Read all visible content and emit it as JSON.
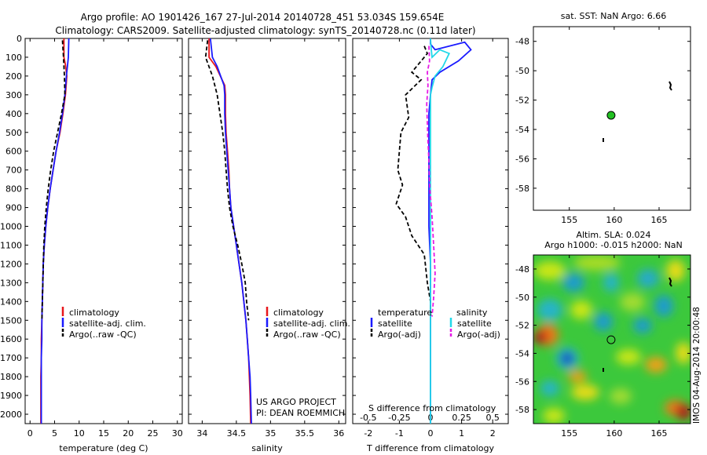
{
  "title_line1": "Argo profile: AO 1901426_167 27-Jul-2014 20140728_451 53.034S 159.654E",
  "title_line2": "Climatology: CARS2009. Satellite-adjusted climatology: synTS_20140728.nc (0.11d later)",
  "colors": {
    "climatology": "#e8161b",
    "satellite": "#1a1aff",
    "argo": "#000000",
    "satellite_s": "#22d8e8",
    "argo_s": "#e619e6",
    "marker": "#22c022"
  },
  "chart_data": [
    {
      "id": "temperature",
      "type": "line",
      "xlabel": "temperature (deg C)",
      "xlim": [
        -1,
        31
      ],
      "xticks": [
        "0",
        "5",
        "10",
        "15",
        "20",
        "25",
        "30"
      ],
      "xtick_values": [
        0,
        5,
        10,
        15,
        20,
        25,
        30
      ],
      "ylim": [
        0,
        2050
      ],
      "yreverse": true,
      "yticks": [
        "0",
        "100",
        "200",
        "300",
        "400",
        "500",
        "600",
        "700",
        "800",
        "900",
        "1000",
        "1100",
        "1200",
        "1300",
        "1400",
        "1500",
        "1600",
        "1700",
        "1800",
        "1900",
        "2000"
      ],
      "ytick_values": [
        0,
        100,
        200,
        300,
        400,
        500,
        600,
        700,
        800,
        900,
        1000,
        1100,
        1200,
        1300,
        1400,
        1500,
        1600,
        1700,
        1800,
        1900,
        2000
      ],
      "series": [
        {
          "name": "climatology",
          "color": "#e8161b",
          "dash": "",
          "x": [
            6.9,
            6.9,
            7.2,
            7.5,
            7.2,
            6.7,
            6.1,
            5.3,
            4.7,
            4.1,
            3.6,
            3.2,
            2.9,
            2.7,
            2.6,
            2.5,
            2.4,
            2.3,
            2.3,
            2.2,
            2.2,
            2.2
          ],
          "y": [
            0,
            100,
            140,
            200,
            300,
            400,
            500,
            600,
            700,
            800,
            900,
            1000,
            1100,
            1200,
            1300,
            1400,
            1500,
            1600,
            1700,
            1800,
            1900,
            2050
          ]
        },
        {
          "name": "satellite-adj. clim.",
          "color": "#1a1aff",
          "dash": "",
          "x": [
            7.9,
            7.8,
            7.6,
            7.4,
            7.1,
            6.6,
            6.0,
            5.3,
            4.7,
            4.1,
            3.6,
            3.2,
            2.9,
            2.7,
            2.6,
            2.5,
            2.4,
            2.4,
            2.3,
            2.3,
            2.3,
            2.3
          ],
          "y": [
            0,
            100,
            150,
            200,
            300,
            400,
            500,
            600,
            700,
            800,
            900,
            1000,
            1100,
            1200,
            1300,
            1400,
            1500,
            1600,
            1700,
            1800,
            1900,
            2050
          ]
        },
        {
          "name": "Argo(..raw -QC)",
          "color": "#000000",
          "dash": "5,3",
          "x": [
            6.6,
            6.8,
            7.0,
            7.1,
            6.4,
            5.6,
            4.8,
            4.2,
            3.7,
            3.3,
            3.0,
            2.8,
            2.7,
            2.6,
            2.5,
            2.4
          ],
          "y": [
            10,
            100,
            200,
            300,
            400,
            500,
            600,
            700,
            800,
            900,
            1000,
            1100,
            1200,
            1300,
            1400,
            1500
          ]
        }
      ],
      "legend": [
        "climatology",
        "satellite-adj. clim.",
        "Argo(..raw -QC)"
      ]
    },
    {
      "id": "salinity",
      "type": "line",
      "xlabel": "salinity",
      "xlim": [
        33.8,
        36.1
      ],
      "xticks": [
        "34",
        "34.5",
        "35",
        "35.5",
        "36"
      ],
      "xtick_values": [
        34,
        34.5,
        35,
        35.5,
        36
      ],
      "ylim": [
        0,
        2050
      ],
      "yreverse": true,
      "series": [
        {
          "name": "climatology",
          "color": "#e8161b",
          "dash": "",
          "x": [
            34.1,
            34.1,
            34.2,
            34.33,
            34.34,
            34.34,
            34.35,
            34.37,
            34.39,
            34.4,
            34.42,
            34.46,
            34.5,
            34.54,
            34.58,
            34.61,
            34.64,
            34.66,
            34.68,
            34.69,
            34.7,
            34.71
          ],
          "y": [
            0,
            100,
            150,
            250,
            300,
            400,
            500,
            600,
            700,
            800,
            900,
            1000,
            1100,
            1200,
            1300,
            1400,
            1500,
            1600,
            1700,
            1800,
            1900,
            2050
          ]
        },
        {
          "name": "satellite-adj. clim.",
          "color": "#1a1aff",
          "dash": "",
          "x": [
            34.12,
            34.15,
            34.22,
            34.32,
            34.33,
            34.33,
            34.34,
            34.36,
            34.38,
            34.4,
            34.42,
            34.46,
            34.5,
            34.54,
            34.58,
            34.61,
            34.64,
            34.66,
            34.68,
            34.7,
            34.71,
            34.72
          ],
          "y": [
            0,
            100,
            150,
            250,
            300,
            400,
            500,
            600,
            700,
            800,
            900,
            1000,
            1100,
            1200,
            1300,
            1400,
            1500,
            1600,
            1700,
            1800,
            1900,
            2050
          ]
        },
        {
          "name": "Argo(..raw -QC)",
          "color": "#000000",
          "dash": "5,3",
          "x": [
            34.08,
            34.05,
            34.15,
            34.22,
            34.26,
            34.3,
            34.33,
            34.35,
            34.37,
            34.4,
            34.45,
            34.52,
            34.58,
            34.63,
            34.65,
            34.68
          ],
          "y": [
            10,
            100,
            200,
            300,
            400,
            500,
            600,
            700,
            800,
            900,
            1000,
            1100,
            1200,
            1300,
            1400,
            1500
          ]
        }
      ],
      "legend": [
        "climatology",
        "satellite-adj. clim.",
        "Argo(..raw -QC)"
      ],
      "note_lines": [
        "US ARGO PROJECT",
        "PI: DEAN ROEMMICH"
      ]
    },
    {
      "id": "difference",
      "type": "line",
      "xlabel": "T difference from climatology",
      "xlabel_top": "S difference from climatology",
      "xlim": [
        -2.5,
        2.5
      ],
      "xticks_bottom": [
        "-2",
        "-1",
        "0",
        "1",
        "2"
      ],
      "xtick_values_bottom": [
        -2,
        -1,
        0,
        1,
        2
      ],
      "xticks_top": [
        "-0.5",
        "-0.25",
        "0",
        "0.25",
        "0.5"
      ],
      "xtick_values_top": [
        -0.5,
        -0.25,
        0,
        0.25,
        0.5
      ],
      "ylim": [
        0,
        2050
      ],
      "yreverse": true,
      "series": [
        {
          "name": "temperature satellite",
          "color": "#1a1aff",
          "dash": "",
          "x": [
            0,
            0,
            0.15,
            1.1,
            1.3,
            0.9,
            0.3,
            0.05,
            0,
            -0.05,
            -0.05,
            -0.05,
            -0.05,
            0,
            0,
            0,
            0,
            0,
            0
          ],
          "y": [
            0,
            30,
            60,
            20,
            60,
            120,
            180,
            220,
            300,
            400,
            600,
            800,
            1000,
            1200,
            1400,
            1600,
            1800,
            1900,
            2050
          ]
        },
        {
          "name": "temperature Argo(-adj)",
          "color": "#000000",
          "dash": "5,3",
          "x": [
            -0.2,
            -0.1,
            -0.6,
            -0.3,
            -0.8,
            -0.7,
            -0.95,
            -1.0,
            -1.05,
            -0.9,
            -1.1,
            -0.8,
            -0.6,
            -0.2,
            -0.1,
            0,
            0
          ],
          "y": [
            40,
            80,
            180,
            220,
            300,
            420,
            500,
            600,
            700,
            780,
            880,
            950,
            1050,
            1150,
            1300,
            1400,
            1480
          ]
        },
        {
          "name": "salinity satellite",
          "color": "#22d8e8",
          "dash": "",
          "x": [
            0,
            0.02,
            0.05,
            0.3,
            0.6,
            0.4,
            0.15,
            0.05,
            0,
            0,
            0,
            0,
            0,
            0,
            0,
            0
          ],
          "y": [
            0,
            50,
            100,
            60,
            80,
            150,
            200,
            260,
            300,
            500,
            800,
            1100,
            1400,
            1700,
            1900,
            2050
          ]
        },
        {
          "name": "salinity Argo(-adj)",
          "color": "#e619e6",
          "dash": "5,3",
          "x": [
            -0.05,
            -0.03,
            -0.1,
            -0.08,
            -0.12,
            -0.1,
            -0.08,
            -0.05,
            -0.02,
            0.05,
            0.1,
            0.15,
            0.1,
            0.05
          ],
          "y": [
            40,
            120,
            180,
            250,
            350,
            450,
            550,
            650,
            800,
            950,
            1100,
            1250,
            1380,
            1480
          ]
        }
      ],
      "legend_left_title": "temperature",
      "legend_right_title": "salinity",
      "legend_left": [
        "satellite",
        "Argo(-adj)"
      ],
      "legend_right": [
        "satellite",
        "Argo(-adj)"
      ]
    },
    {
      "id": "sst_map",
      "type": "scatter",
      "title": "sat. SST: NaN  Argo: 6.66",
      "xlim": [
        151,
        168.5
      ],
      "ylim": [
        -59.5,
        -47
      ],
      "xticks": [
        "155",
        "160",
        "165"
      ],
      "xtick_values": [
        155,
        160,
        165
      ],
      "yticks": [
        "-48",
        "-50",
        "-52",
        "-54",
        "-56",
        "-58"
      ],
      "ytick_values": [
        -48,
        -50,
        -52,
        -54,
        -56,
        -58
      ],
      "float_position": {
        "lon": 159.654,
        "lat": -53.034
      }
    },
    {
      "id": "sla_map",
      "type": "heatmap",
      "title_line1": "Altim. SLA: 0.024",
      "title_line2": "Argo h1000: -0.015 h2000: NaN",
      "xlim": [
        151,
        168.5
      ],
      "ylim": [
        -59,
        -47
      ],
      "xticks": [
        "155",
        "160",
        "165"
      ],
      "xtick_values": [
        155,
        160,
        165
      ],
      "yticks": [
        "-48",
        "-50",
        "-52",
        "-54",
        "-56",
        "-58"
      ],
      "ytick_values": [
        -48,
        -50,
        -52,
        -54,
        -56,
        -58
      ],
      "float_position": {
        "lon": 159.654,
        "lat": -53.034
      },
      "side_label": "IMOS 04-Aug-2014 20:00:48"
    }
  ]
}
